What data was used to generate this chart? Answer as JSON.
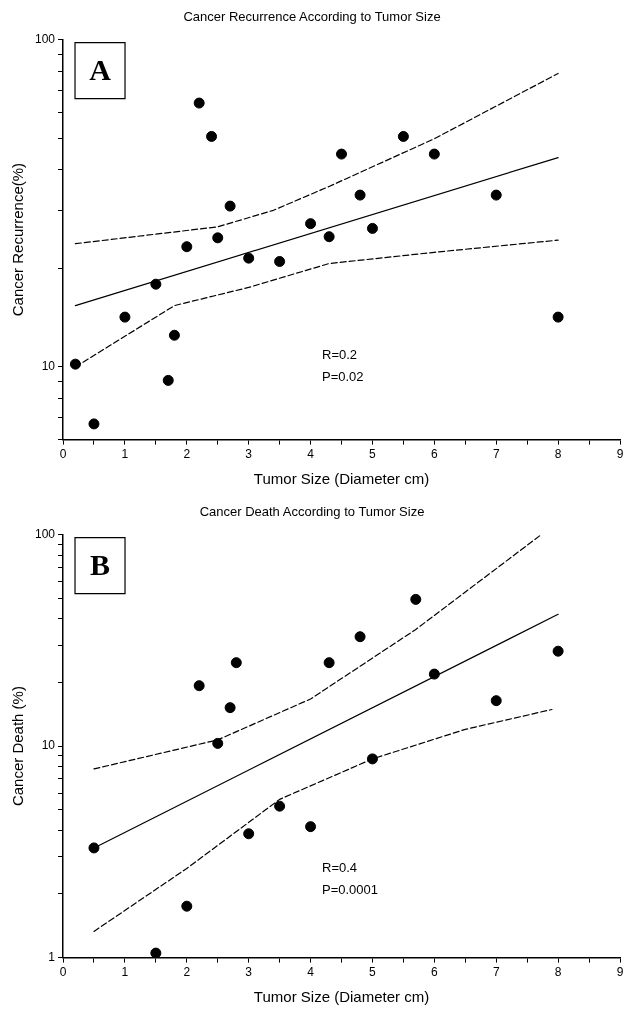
{
  "chart_data": [
    {
      "type": "scatter",
      "title": "Cancer Recurrence According to Tumor Size",
      "xlabel": "Tumor Size (Diameter cm)",
      "ylabel": "Cancer Recurrence(%)",
      "annotations": [
        "A",
        "R=0.2",
        "P=0.02"
      ],
      "log": "y",
      "legend": false,
      "xlim": [
        0,
        9
      ],
      "xticks": [
        0,
        {
          "value": 0.5,
          "label": null
        },
        1,
        {
          "value": 1.5,
          "label": null
        },
        2,
        {
          "value": 2.5,
          "label": null
        },
        3,
        {
          "value": 3.5,
          "label": null
        },
        4,
        {
          "value": 4.5,
          "label": null
        },
        5,
        {
          "value": 5.5,
          "label": null
        },
        6,
        {
          "value": 6.5,
          "label": null
        },
        7,
        {
          "value": 7.5,
          "label": null
        },
        8,
        {
          "value": 8.5,
          "label": null
        },
        9
      ],
      "ylim": [
        6,
        100
      ],
      "yticks": [
        {
          "value": 6,
          "label": null
        },
        {
          "value": 7,
          "label": null
        },
        {
          "value": 8,
          "label": null
        },
        {
          "value": 9,
          "label": null
        },
        10,
        {
          "value": 20,
          "label": null
        },
        {
          "value": 30,
          "label": null
        },
        {
          "value": 40,
          "label": null
        },
        {
          "value": 50,
          "label": null
        },
        {
          "value": 60,
          "label": null
        },
        {
          "value": 70,
          "label": null
        },
        {
          "value": 80,
          "label": null
        },
        {
          "value": 90,
          "label": null
        },
        100
      ],
      "series": [
        {
          "type": "scatter",
          "marker": "circle",
          "color": "#000000",
          "x": [
            0.2,
            0.5,
            1.0,
            1.5,
            1.7,
            1.8,
            2.0,
            2.2,
            2.4,
            2.5,
            2.7,
            3.0,
            3.5,
            4.0,
            4.3,
            4.5,
            4.8,
            5.0,
            5.5,
            6.0,
            7.0,
            8.0
          ],
          "values": [
            10.2,
            6.7,
            14.2,
            17.9,
            9.1,
            12.5,
            23.3,
            64,
            50.6,
            24.8,
            31,
            21.5,
            21,
            27.4,
            25,
            44.7,
            33.5,
            26.5,
            50.6,
            44.7,
            33.5,
            14.2
          ]
        },
        {
          "type": "line",
          "color": "#000000",
          "line_style": "solid",
          "x": [
            0.2,
            8.0
          ],
          "values": [
            15.4,
            43.6
          ]
        },
        {
          "type": "line",
          "color": "#000000",
          "line_style": "dashed",
          "x": [
            0.2,
            2.5,
            3.4,
            4.3,
            6.0,
            8.0
          ],
          "values": [
            23.8,
            26.8,
            30.1,
            35.6,
            49.8,
            78.8
          ]
        },
        {
          "type": "line",
          "color": "#000000",
          "line_style": "dashed",
          "x": [
            0.2,
            1.8,
            3.0,
            4.3,
            6.0,
            8.0
          ],
          "values": [
            10,
            15.4,
            17.5,
            20.7,
            22.4,
            24.4
          ]
        }
      ]
    },
    {
      "type": "scatter",
      "title": "Cancer Death According to Tumor Size",
      "xlabel": "Tumor Size (Diameter cm)",
      "ylabel": "Cancer Death (%)",
      "annotations": [
        "B",
        "R=0.4",
        "P=0.0001"
      ],
      "log": "y",
      "legend": false,
      "xlim": [
        0,
        9
      ],
      "xticks": [
        0,
        {
          "value": 0.5,
          "label": null
        },
        1,
        {
          "value": 1.5,
          "label": null
        },
        2,
        {
          "value": 2.5,
          "label": null
        },
        3,
        {
          "value": 3.5,
          "label": null
        },
        4,
        {
          "value": 4.5,
          "label": null
        },
        5,
        {
          "value": 5.5,
          "label": null
        },
        6,
        {
          "value": 6.5,
          "label": null
        },
        7,
        {
          "value": 7.5,
          "label": null
        },
        8,
        {
          "value": 8.5,
          "label": null
        },
        9
      ],
      "ylim": [
        1,
        100
      ],
      "yticks": [
        1,
        {
          "value": 2,
          "label": null
        },
        {
          "value": 3,
          "label": null
        },
        {
          "value": 4,
          "label": null
        },
        {
          "value": 5,
          "label": null
        },
        {
          "value": 6,
          "label": null
        },
        {
          "value": 7,
          "label": null
        },
        {
          "value": 8,
          "label": null
        },
        {
          "value": 9,
          "label": null
        },
        10,
        {
          "value": 20,
          "label": null
        },
        {
          "value": 30,
          "label": null
        },
        {
          "value": 40,
          "label": null
        },
        {
          "value": 50,
          "label": null
        },
        {
          "value": 60,
          "label": null
        },
        {
          "value": 70,
          "label": null
        },
        {
          "value": 80,
          "label": null
        },
        {
          "value": 90,
          "label": null
        },
        100
      ],
      "series": [
        {
          "type": "scatter",
          "marker": "circle",
          "color": "#000000",
          "x": [
            0.5,
            1.5,
            2.0,
            2.2,
            2.5,
            2.7,
            2.8,
            3.0,
            3.5,
            4.0,
            4.3,
            4.8,
            5.0,
            5.7,
            6.0,
            7.0,
            8.0
          ],
          "values": [
            3.3,
            1.05,
            1.75,
            19.3,
            10.3,
            15.2,
            24.8,
            3.85,
            5.2,
            4.16,
            24.8,
            32.9,
            8.7,
            49.4,
            21.9,
            16.4,
            28.1
          ]
        },
        {
          "type": "line",
          "color": "#000000",
          "line_style": "solid",
          "x": [
            0.5,
            8.0
          ],
          "values": [
            3.3,
            42
          ]
        },
        {
          "type": "line",
          "color": "#000000",
          "line_style": "dashed",
          "x": [
            0.5,
            2.5,
            4.0,
            5.7,
            7.7
          ],
          "values": [
            7.8,
            10.7,
            16.7,
            35.6,
            98.6
          ]
        },
        {
          "type": "line",
          "color": "#000000",
          "line_style": "dashed",
          "x": [
            0.5,
            2.0,
            3.5,
            5.0,
            6.5,
            7.9
          ],
          "values": [
            1.33,
            2.64,
            5.6,
            8.7,
            12,
            14.9
          ]
        }
      ]
    }
  ]
}
